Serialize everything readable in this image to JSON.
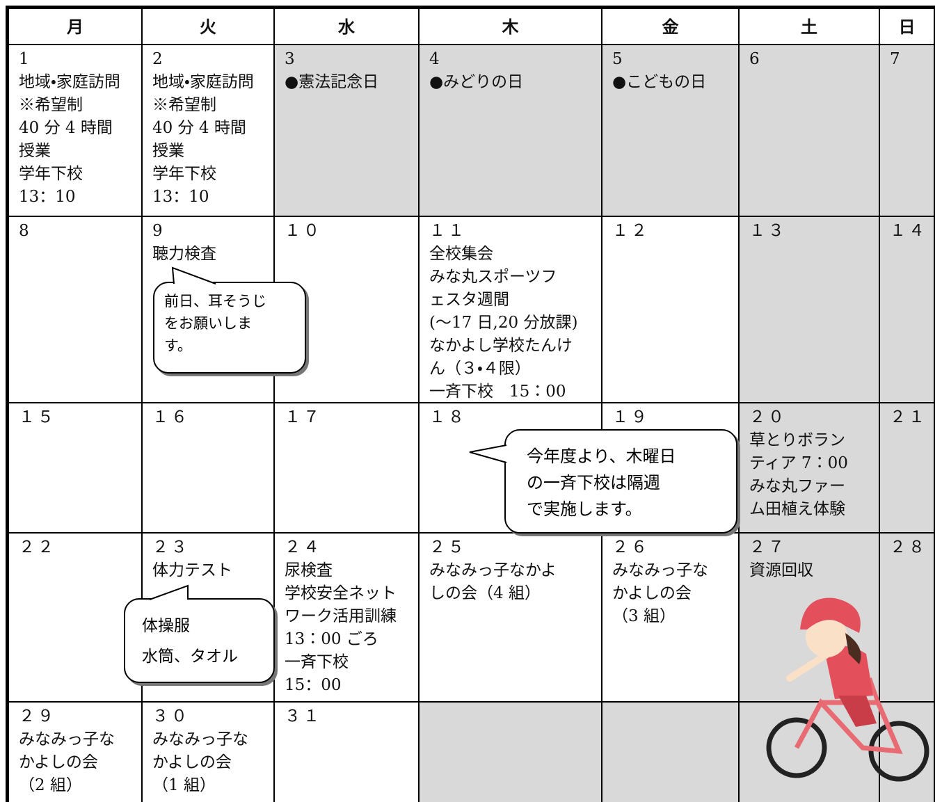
{
  "header": {
    "days": [
      "月",
      "火",
      "水",
      "木",
      "金",
      "土",
      "日"
    ]
  },
  "weeks": [
    [
      {
        "date": "1",
        "lines": [
          "地域・家庭訪問",
          "※希望制",
          "40 分 4 時間",
          "授業",
          "学年下校",
          "13：10"
        ]
      },
      {
        "date": "2",
        "lines": [
          "地域・家庭訪問",
          "※希望制",
          "40 分 4 時間",
          "授業",
          "学年下校",
          "13：10"
        ]
      },
      {
        "date": "3",
        "lines": [
          "●憲法記念日"
        ],
        "shaded": true
      },
      {
        "date": "4",
        "lines": [
          "●みどりの日"
        ],
        "shaded": true
      },
      {
        "date": "5",
        "lines": [
          "●こどもの日"
        ],
        "shaded": true
      },
      {
        "date": "6",
        "lines": [],
        "shaded": true
      },
      {
        "date": "7",
        "lines": [],
        "shaded": true
      }
    ],
    [
      {
        "date": "8",
        "lines": []
      },
      {
        "date": "9",
        "lines": [
          "聴力検査"
        ]
      },
      {
        "date": "１０",
        "lines": []
      },
      {
        "date": "１１",
        "lines": [
          "全校集会",
          "みな丸スポーツフ",
          "ェスタ週間",
          "(～17 日,20 分放課)",
          "なかよし学校たんけ",
          "ん（３・４限）",
          "一斉下校　15：00"
        ]
      },
      {
        "date": "１２",
        "lines": []
      },
      {
        "date": "１３",
        "lines": [],
        "shaded": true
      },
      {
        "date": "１４",
        "lines": [],
        "shaded": true
      }
    ],
    [
      {
        "date": "１５",
        "lines": []
      },
      {
        "date": "１６",
        "lines": []
      },
      {
        "date": "１７",
        "lines": []
      },
      {
        "date": "１８",
        "lines": []
      },
      {
        "date": "１９",
        "lines": []
      },
      {
        "date": "２０",
        "lines": [
          "草とりボラン",
          "ティア 7：00",
          "みな丸ファー",
          "ム田植え体験"
        ],
        "shaded": true
      },
      {
        "date": "２１",
        "lines": [],
        "shaded": true
      }
    ],
    [
      {
        "date": "２２",
        "lines": []
      },
      {
        "date": "２３",
        "lines": [
          "体力テスト"
        ]
      },
      {
        "date": "２４",
        "lines": [
          "尿検査",
          "学校安全ネット",
          "ワーク活用訓練",
          "13：00 ごろ",
          "一斉下校",
          "15：00"
        ]
      },
      {
        "date": "２５",
        "lines": [
          "みなみっ子なかよ",
          "しの会（4 組）"
        ]
      },
      {
        "date": "２６",
        "lines": [
          "みなみっ子な",
          "かよしの会",
          "（3 組）"
        ]
      },
      {
        "date": "２７",
        "lines": [
          "資源回収"
        ],
        "shaded": true
      },
      {
        "date": "２８",
        "lines": [],
        "shaded": true
      }
    ],
    [
      {
        "date": "２９",
        "lines": [
          "みなみっ子な",
          "かよしの会",
          "（2 組）"
        ]
      },
      {
        "date": "３０",
        "lines": [
          "みなみっ子な",
          "かよしの会",
          "（1 組）"
        ]
      },
      {
        "date": "３１",
        "lines": []
      }
    ]
  ],
  "callouts": [
    {
      "lines": [
        "前日、耳そうじ",
        "をお願いしま",
        "す。"
      ]
    },
    {
      "lines": [
        "今年度より、木曜日",
        "の一斉下校は隔週",
        "で実施します。"
      ]
    },
    {
      "lines": [
        "体操服",
        "水筒、タオル"
      ]
    }
  ]
}
